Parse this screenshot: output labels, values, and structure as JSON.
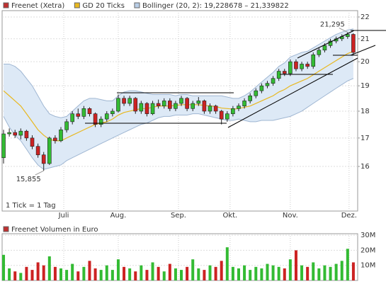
{
  "chart_data": [
    {
      "type": "candlestick",
      "log_scale": true,
      "grid": true,
      "xlim": [
        -0.25,
        61.75
      ],
      "xticks": [
        {
          "value": 10.5,
          "label": "Juli"
        },
        {
          "value": 20,
          "label": "Aug."
        },
        {
          "value": 30.5,
          "label": "Sep."
        },
        {
          "value": 39.5,
          "label": "Okt."
        },
        {
          "value": 50,
          "label": "Nov."
        },
        {
          "value": 60.25,
          "label": "Dez."
        }
      ],
      "ylim": [
        14.55,
        22.3
      ],
      "yticks": [
        16,
        17,
        18,
        19,
        20,
        21,
        22
      ],
      "up_color": "#33bb33",
      "down_color": "#cc2222",
      "footnote": "1 Tick = 1 Tag",
      "annotations": [
        {
          "label": "21,295",
          "index": 60,
          "value": 21.295
        },
        {
          "label": "15,855",
          "index": 7,
          "value": 15.855
        }
      ],
      "series": [
        {
          "name": "Freenet (Xetra)",
          "color": "#c03030",
          "open": [
            16.3,
            17.15,
            17.2,
            17.1,
            17.25,
            17.0,
            16.7,
            16.4,
            16.1,
            17.0,
            16.9,
            17.3,
            17.6,
            17.9,
            17.8,
            18.1,
            17.9,
            17.5,
            17.7,
            17.9,
            18.0,
            18.5,
            18.3,
            18.5,
            18.0,
            18.3,
            17.9,
            18.3,
            18.2,
            18.4,
            18.1,
            18.3,
            18.5,
            18.1,
            18.3,
            18.4,
            18.0,
            18.2,
            18.0,
            17.7,
            17.9,
            18.1,
            18.2,
            18.4,
            18.6,
            18.8,
            19.0,
            19.1,
            19.3,
            19.6,
            19.5,
            20.0,
            19.7,
            19.9,
            19.8,
            20.3,
            20.5,
            20.7,
            20.9,
            21.0,
            21.1,
            21.2
          ],
          "high": [
            17.3,
            17.35,
            17.3,
            17.35,
            17.3,
            17.1,
            16.8,
            16.5,
            17.05,
            17.1,
            17.4,
            17.7,
            18.0,
            18.1,
            18.2,
            18.15,
            17.95,
            17.8,
            18.0,
            18.1,
            18.65,
            18.6,
            18.6,
            18.55,
            18.4,
            18.35,
            18.4,
            18.45,
            18.5,
            18.5,
            18.4,
            18.6,
            18.55,
            18.4,
            18.55,
            18.45,
            18.3,
            18.25,
            18.05,
            18.0,
            18.2,
            18.3,
            18.5,
            18.7,
            18.9,
            19.1,
            19.2,
            19.4,
            19.7,
            19.7,
            20.1,
            20.1,
            20.0,
            20.0,
            20.4,
            20.6,
            20.8,
            21.0,
            21.1,
            21.2,
            21.295,
            21.25
          ],
          "low": [
            16.1,
            17.05,
            17.0,
            16.95,
            16.9,
            16.6,
            16.3,
            15.855,
            16.05,
            16.8,
            16.85,
            17.2,
            17.5,
            17.7,
            17.7,
            17.8,
            17.4,
            17.4,
            17.6,
            17.8,
            17.95,
            18.2,
            18.2,
            17.9,
            17.9,
            17.8,
            17.85,
            18.1,
            18.1,
            18.0,
            18.0,
            18.2,
            18.0,
            18.0,
            18.2,
            17.9,
            17.9,
            17.9,
            17.5,
            17.6,
            17.8,
            18.0,
            18.1,
            18.3,
            18.5,
            18.7,
            18.9,
            19.0,
            19.2,
            19.4,
            19.4,
            19.6,
            19.6,
            19.7,
            19.7,
            20.2,
            20.4,
            20.6,
            20.8,
            20.9,
            21.0,
            20.3
          ],
          "close": [
            17.15,
            17.2,
            17.1,
            17.25,
            17.0,
            16.7,
            16.4,
            16.1,
            17.0,
            16.9,
            17.3,
            17.6,
            17.9,
            17.8,
            18.1,
            17.9,
            17.5,
            17.7,
            17.9,
            18.0,
            18.5,
            18.3,
            18.5,
            18.0,
            18.3,
            17.9,
            18.3,
            18.2,
            18.4,
            18.1,
            18.3,
            18.5,
            18.1,
            18.3,
            18.4,
            18.0,
            18.2,
            18.0,
            17.7,
            17.9,
            18.1,
            18.2,
            18.4,
            18.6,
            18.8,
            19.0,
            19.1,
            19.3,
            19.6,
            19.5,
            20.0,
            19.7,
            19.9,
            19.8,
            20.3,
            20.5,
            20.7,
            20.9,
            21.0,
            21.1,
            21.2,
            20.4
          ]
        },
        {
          "name": "GD 20 Ticks",
          "color": "#e8b820",
          "values": [
            18.8,
            18.6,
            18.4,
            18.2,
            17.9,
            17.6,
            17.3,
            17.1,
            16.95,
            16.9,
            16.9,
            17.0,
            17.1,
            17.2,
            17.3,
            17.4,
            17.5,
            17.55,
            17.6,
            17.7,
            17.85,
            17.95,
            18.0,
            18.05,
            18.1,
            18.1,
            18.15,
            18.2,
            18.2,
            18.2,
            18.22,
            18.25,
            18.25,
            18.25,
            18.25,
            18.22,
            18.2,
            18.18,
            18.12,
            18.1,
            18.08,
            18.1,
            18.15,
            18.2,
            18.3,
            18.4,
            18.5,
            18.6,
            18.75,
            18.85,
            19.0,
            19.1,
            19.2,
            19.3,
            19.45,
            19.6,
            19.75,
            19.9,
            20.05,
            20.2,
            20.35,
            20.45
          ]
        },
        {
          "name": "Bollinger (20, 2): 19,228678 – 21,339822",
          "color": "#b8cde6",
          "upper": [
            19.9,
            19.9,
            19.8,
            19.6,
            19.3,
            19.0,
            18.6,
            18.2,
            17.9,
            17.8,
            17.75,
            17.8,
            18.0,
            18.2,
            18.4,
            18.5,
            18.5,
            18.45,
            18.4,
            18.4,
            18.6,
            18.75,
            18.8,
            18.8,
            18.75,
            18.7,
            18.65,
            18.65,
            18.65,
            18.65,
            18.6,
            18.65,
            18.65,
            18.6,
            18.6,
            18.6,
            18.6,
            18.6,
            18.6,
            18.55,
            18.5,
            18.5,
            18.6,
            18.75,
            18.95,
            19.15,
            19.35,
            19.55,
            19.8,
            19.95,
            20.2,
            20.3,
            20.4,
            20.45,
            20.6,
            20.75,
            20.9,
            21.05,
            21.2,
            21.3,
            21.4,
            21.45
          ],
          "lower": [
            17.8,
            17.4,
            17.1,
            16.9,
            16.6,
            16.3,
            16.05,
            15.9,
            15.95,
            16.0,
            16.05,
            16.2,
            16.3,
            16.4,
            16.5,
            16.6,
            16.7,
            16.8,
            16.9,
            17.0,
            17.1,
            17.2,
            17.3,
            17.4,
            17.5,
            17.55,
            17.65,
            17.75,
            17.8,
            17.8,
            17.85,
            17.85,
            17.85,
            17.9,
            17.9,
            17.85,
            17.8,
            17.75,
            17.7,
            17.65,
            17.65,
            17.7,
            17.65,
            17.6,
            17.6,
            17.65,
            17.65,
            17.65,
            17.7,
            17.75,
            17.8,
            17.9,
            18.0,
            18.15,
            18.3,
            18.45,
            18.6,
            18.75,
            18.9,
            19.05,
            19.2,
            19.3
          ]
        }
      ]
    },
    {
      "type": "bar",
      "title": "Freenet Volumen in Euro",
      "color": "#c03030",
      "xlim": [
        -0.25,
        61.75
      ],
      "ylim": [
        0,
        31
      ],
      "grid": true,
      "yticks": [
        {
          "value": 10,
          "label": "10M"
        },
        {
          "value": 20,
          "label": "20M"
        },
        {
          "value": 30,
          "label": "30M"
        }
      ],
      "values": [
        17,
        8,
        6,
        5,
        9,
        7,
        12,
        10,
        16,
        9,
        8,
        7,
        11,
        6,
        9,
        13,
        8,
        7,
        10,
        7,
        14,
        9,
        8,
        6,
        10,
        7,
        12,
        9,
        6,
        11,
        8,
        7,
        9,
        14,
        8,
        7,
        10,
        9,
        13,
        22,
        9,
        8,
        10,
        7,
        9,
        8,
        11,
        10,
        9,
        8,
        14,
        20,
        10,
        9,
        12,
        8,
        10,
        9,
        11,
        13,
        21,
        12
      ]
    }
  ]
}
